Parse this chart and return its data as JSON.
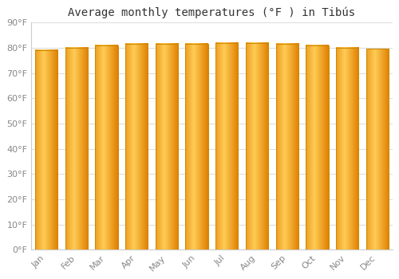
{
  "title": "Average monthly temperatures (°F ) in Tibús",
  "months": [
    "Jan",
    "Feb",
    "Mar",
    "Apr",
    "May",
    "Jun",
    "Jul",
    "Aug",
    "Sep",
    "Oct",
    "Nov",
    "Dec"
  ],
  "values": [
    79,
    80,
    81,
    81.5,
    81.5,
    81.5,
    82,
    82,
    81.5,
    81,
    80,
    79.5
  ],
  "ylim": [
    0,
    90
  ],
  "yticks": [
    0,
    10,
    20,
    30,
    40,
    50,
    60,
    70,
    80,
    90
  ],
  "ytick_labels": [
    "0°F",
    "10°F",
    "20°F",
    "30°F",
    "40°F",
    "50°F",
    "60°F",
    "70°F",
    "80°F",
    "90°F"
  ],
  "bar_color_main": "#FFA726",
  "bar_color_light": "#FFCC66",
  "bar_color_dark": "#E08000",
  "bar_edge_color": "#CC8800",
  "background_color": "#ffffff",
  "plot_bg_color": "#ffffff",
  "title_fontsize": 10,
  "tick_fontsize": 8,
  "grid_color": "#dddddd",
  "text_color": "#888888",
  "bar_width": 0.75
}
